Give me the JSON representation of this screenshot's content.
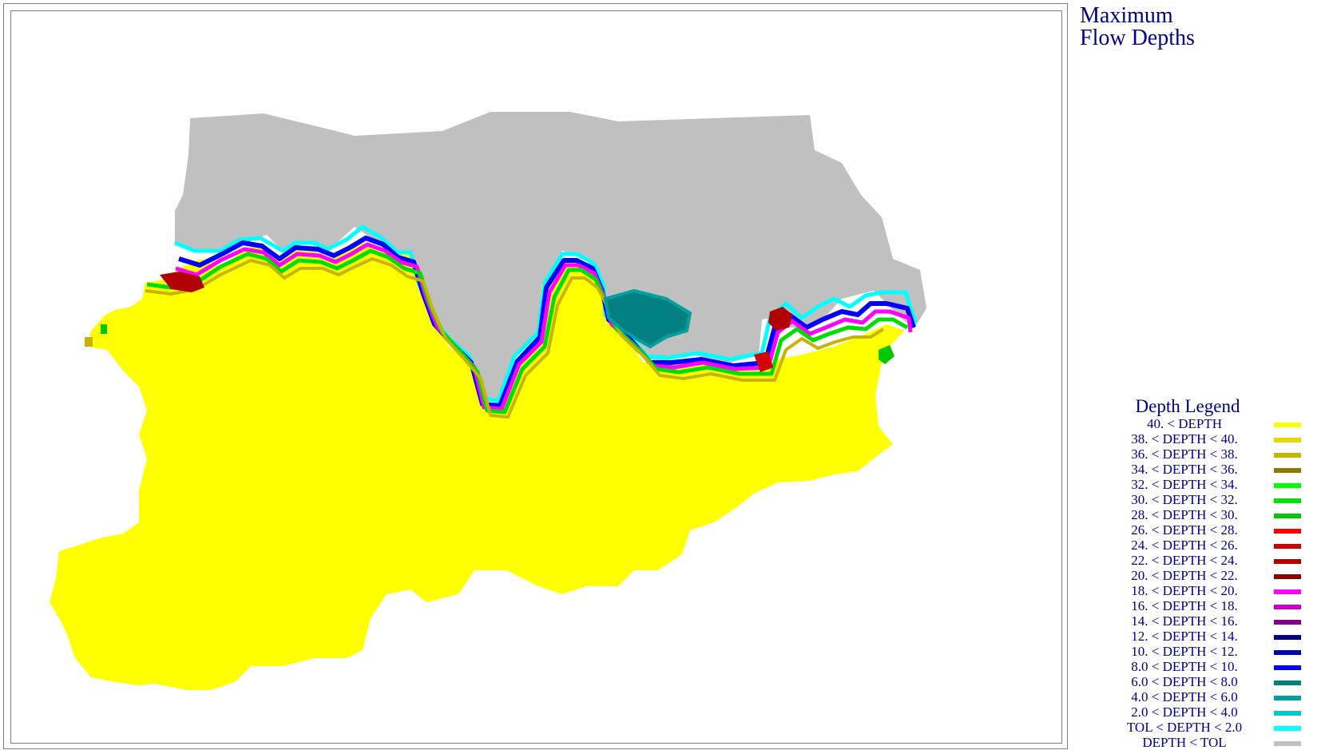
{
  "title": {
    "line1": "Maximum",
    "line2": "Flow Depths"
  },
  "legend": {
    "title": "Depth Legend",
    "items": [
      {
        "label": "40. < DEPTH",
        "color": "#ffff00"
      },
      {
        "label": "38. < DEPTH < 40.",
        "color": "#e6d800"
      },
      {
        "label": "36. < DEPTH < 38.",
        "color": "#c8b400"
      },
      {
        "label": "34. < DEPTH < 36.",
        "color": "#8c7800"
      },
      {
        "label": "32. < DEPTH < 34.",
        "color": "#00ff00"
      },
      {
        "label": "30. < DEPTH < 32.",
        "color": "#00e000"
      },
      {
        "label": "28. < DEPTH < 30.",
        "color": "#00c800"
      },
      {
        "label": "26. < DEPTH < 28.",
        "color": "#ff0000"
      },
      {
        "label": "24. < DEPTH < 26.",
        "color": "#d20000"
      },
      {
        "label": "22. < DEPTH < 24.",
        "color": "#b00000"
      },
      {
        "label": "20. < DEPTH < 22.",
        "color": "#8c0000"
      },
      {
        "label": "18. < DEPTH < 20.",
        "color": "#ff00ff"
      },
      {
        "label": "16. < DEPTH < 18.",
        "color": "#c800c8"
      },
      {
        "label": "14. < DEPTH < 16.",
        "color": "#820082"
      },
      {
        "label": "12. < DEPTH < 14.",
        "color": "#000080"
      },
      {
        "label": "10. < DEPTH < 12.",
        "color": "#0000b4"
      },
      {
        "label": "8.0 < DEPTH < 10.",
        "color": "#0000ff"
      },
      {
        "label": "6.0 < DEPTH < 8.0",
        "color": "#008080"
      },
      {
        "label": "4.0 < DEPTH < 6.0",
        "color": "#00a0a0"
      },
      {
        "label": "2.0 < DEPTH < 4.0",
        "color": "#00c8c8"
      },
      {
        "label": "TOL < DEPTH < 2.0",
        "color": "#00ffff"
      },
      {
        "label": "DEPTH < TOL",
        "color": "#c0c0c0"
      }
    ]
  },
  "map_colors": {
    "dry": "#c0c0c0",
    "deep": "#ffff00",
    "pond": "#008080"
  }
}
